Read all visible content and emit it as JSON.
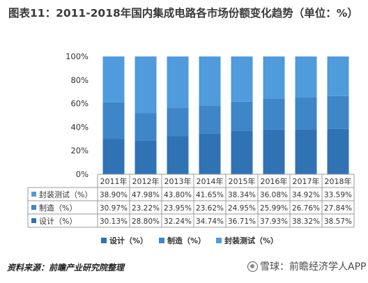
{
  "title": "图表11：2011-2018年国内集成电路各市场份额变化趋势（单位：%）",
  "source": "资料来源：前瞻产业研究院整理",
  "watermark": {
    "text": "雪球：前瞻经济学人APP"
  },
  "chart_data": {
    "type": "bar",
    "stacked": true,
    "percent_stacked": true,
    "categories": [
      "2011年",
      "2012年",
      "2013年",
      "2014年",
      "2015年",
      "2016年",
      "2017年",
      "2018年"
    ],
    "yticks": [
      "0%",
      "20%",
      "40%",
      "60%",
      "80%",
      "100%"
    ],
    "ylim": [
      0,
      100
    ],
    "grid": false,
    "legend_position": "bottom",
    "series": [
      {
        "name": "设计（%）",
        "color": "#2f73b5",
        "values": [
          30.13,
          28.8,
          32.24,
          34.74,
          36.71,
          37.93,
          38.32,
          38.57
        ],
        "labels": [
          "30.13%",
          "28.80%",
          "32.24%",
          "34.74%",
          "36.71%",
          "37.93%",
          "38.32%",
          "38.57%"
        ]
      },
      {
        "name": "制造（%）",
        "color": "#3e86c7",
        "values": [
          30.97,
          23.22,
          23.95,
          23.62,
          24.95,
          25.99,
          26.76,
          27.84
        ],
        "labels": [
          "30.97%",
          "23.22%",
          "23.95%",
          "23.62%",
          "24.95%",
          "25.99%",
          "26.76%",
          "27.84%"
        ]
      },
      {
        "name": "封装测试（%）",
        "color": "#4f9bdc",
        "values": [
          38.9,
          47.98,
          43.8,
          41.65,
          38.34,
          36.08,
          34.92,
          33.59
        ],
        "labels": [
          "38.90%",
          "47.98%",
          "43.80%",
          "41.65%",
          "38.34%",
          "36.08%",
          "34.92%",
          "33.59%"
        ]
      }
    ],
    "table_row_order": [
      2,
      1,
      0
    ]
  }
}
